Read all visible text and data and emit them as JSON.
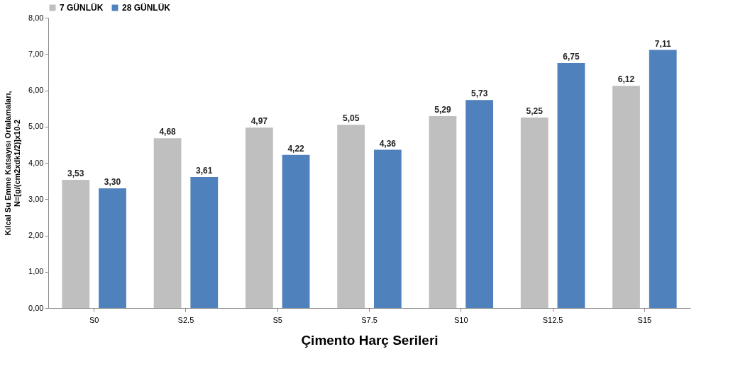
{
  "chart_data": {
    "type": "bar",
    "xlabel": "Çimento Harç Serileri",
    "ylabel": "Kılcal Su Emme Katsayısı Ortalamaları,\nN=[g/(cm2xdk1/2)]x10-2",
    "categories": [
      "S0",
      "S2.5",
      "S5",
      "S7.5",
      "S10",
      "S12.5",
      "S15"
    ],
    "series": [
      {
        "name": "7 GÜNLÜK",
        "color": "#bfbfbf",
        "values": [
          3.53,
          4.68,
          4.97,
          5.05,
          5.29,
          5.25,
          6.12
        ],
        "value_labels": [
          "3,53",
          "4,68",
          "4,97",
          "5,05",
          "5,29",
          "5,25",
          "6,12"
        ]
      },
      {
        "name": "28 GÜNLÜK",
        "color": "#4f81bd",
        "values": [
          3.3,
          3.61,
          4.22,
          4.36,
          5.73,
          6.75,
          7.11
        ],
        "value_labels": [
          "3,30",
          "3,61",
          "4,22",
          "4,36",
          "5,73",
          "6,75",
          "7,11"
        ]
      }
    ],
    "ylim": [
      0,
      8
    ],
    "yticks": [
      {
        "value": 0,
        "label": "0,00"
      },
      {
        "value": 1,
        "label": "1,00"
      },
      {
        "value": 2,
        "label": "2,00"
      },
      {
        "value": 3,
        "label": "3,00"
      },
      {
        "value": 4,
        "label": "4,00"
      },
      {
        "value": 5,
        "label": "5,00"
      },
      {
        "value": 6,
        "label": "6,00"
      },
      {
        "value": 7,
        "label": "7,00"
      },
      {
        "value": 8,
        "label": "8,00"
      }
    ],
    "grid": false,
    "legend": "top"
  }
}
